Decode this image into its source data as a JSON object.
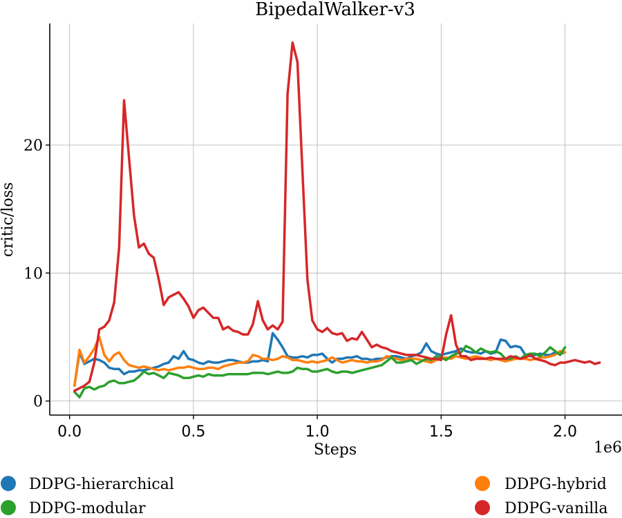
{
  "chart_data": {
    "type": "line",
    "title": "BipedalWalker-v3",
    "xlabel": "Steps",
    "ylabel": "critic/loss",
    "x_offset_label": "1e6",
    "xlim": [
      -0.08,
      2.23
    ],
    "ylim": [
      -1.1,
      29.5
    ],
    "xticks": [
      0.0,
      0.5,
      1.0,
      1.5,
      2.0
    ],
    "xtick_labels": [
      "0.0",
      "0.5",
      "1.0",
      "1.5",
      "2.0"
    ],
    "yticks": [
      0,
      10,
      20
    ],
    "ytick_labels": [
      "0",
      "10",
      "20"
    ],
    "grid": true,
    "legend_position": "bottom",
    "series": [
      {
        "name": "DDPG-hierarchical",
        "color": "#1f77b4",
        "x": [
          0.02,
          0.04,
          0.06,
          0.08,
          0.1,
          0.12,
          0.14,
          0.16,
          0.18,
          0.2,
          0.22,
          0.24,
          0.26,
          0.28,
          0.3,
          0.32,
          0.34,
          0.36,
          0.38,
          0.4,
          0.42,
          0.44,
          0.46,
          0.48,
          0.5,
          0.52,
          0.54,
          0.56,
          0.58,
          0.6,
          0.62,
          0.64,
          0.66,
          0.68,
          0.7,
          0.72,
          0.74,
          0.76,
          0.78,
          0.8,
          0.82,
          0.84,
          0.86,
          0.88,
          0.9,
          0.92,
          0.94,
          0.96,
          0.98,
          1.0,
          1.02,
          1.04,
          1.06,
          1.08,
          1.1,
          1.12,
          1.14,
          1.16,
          1.18,
          1.2,
          1.22,
          1.24,
          1.26,
          1.28,
          1.3,
          1.32,
          1.34,
          1.36,
          1.38,
          1.4,
          1.42,
          1.44,
          1.46,
          1.48,
          1.5,
          1.52,
          1.54,
          1.56,
          1.58,
          1.6,
          1.62,
          1.64,
          1.66,
          1.68,
          1.7,
          1.72,
          1.74,
          1.76,
          1.78,
          1.8,
          1.82,
          1.84,
          1.86,
          1.88,
          1.9,
          1.92,
          1.94,
          1.96,
          1.98,
          2.0
        ],
        "y": [
          1.2,
          3.8,
          2.9,
          3.1,
          3.3,
          3.2,
          3.0,
          2.6,
          2.5,
          2.5,
          2.1,
          2.3,
          2.3,
          2.4,
          2.4,
          2.5,
          2.6,
          2.7,
          2.9,
          3.0,
          3.5,
          3.3,
          3.9,
          3.3,
          3.2,
          3.0,
          2.9,
          3.1,
          3.0,
          3.0,
          3.1,
          3.2,
          3.2,
          3.1,
          3.0,
          3.0,
          3.1,
          3.1,
          3.2,
          3.1,
          5.3,
          4.8,
          4.2,
          3.5,
          3.4,
          3.4,
          3.5,
          3.4,
          3.6,
          3.6,
          3.7,
          3.3,
          3.0,
          3.3,
          3.3,
          3.4,
          3.4,
          3.5,
          3.3,
          3.3,
          3.2,
          3.3,
          3.3,
          3.4,
          3.5,
          3.5,
          3.4,
          3.3,
          3.5,
          3.6,
          3.8,
          4.5,
          3.9,
          3.7,
          3.6,
          3.7,
          3.8,
          3.9,
          4.1,
          3.9,
          3.8,
          3.8,
          3.7,
          3.9,
          3.7,
          3.8,
          4.8,
          4.7,
          4.2,
          4.3,
          4.2,
          3.6,
          3.5,
          3.6,
          3.7,
          3.6,
          3.6,
          3.8,
          3.7,
          3.8
        ]
      },
      {
        "name": "DDPG-hybrid",
        "color": "#ff7f0e",
        "x": [
          0.02,
          0.04,
          0.06,
          0.08,
          0.1,
          0.12,
          0.14,
          0.16,
          0.18,
          0.2,
          0.22,
          0.24,
          0.26,
          0.28,
          0.3,
          0.32,
          0.34,
          0.36,
          0.38,
          0.4,
          0.42,
          0.44,
          0.46,
          0.48,
          0.5,
          0.52,
          0.54,
          0.56,
          0.58,
          0.6,
          0.62,
          0.64,
          0.66,
          0.68,
          0.7,
          0.72,
          0.74,
          0.76,
          0.78,
          0.8,
          0.82,
          0.84,
          0.86,
          0.88,
          0.9,
          0.92,
          0.94,
          0.96,
          0.98,
          1.0,
          1.02,
          1.04,
          1.06,
          1.08,
          1.1,
          1.12,
          1.14,
          1.16,
          1.18,
          1.2,
          1.22,
          1.24,
          1.26,
          1.28,
          1.3,
          1.32,
          1.34,
          1.36,
          1.38,
          1.4,
          1.42,
          1.44,
          1.46,
          1.48,
          1.5,
          1.52,
          1.54,
          1.56,
          1.58,
          1.6,
          1.62,
          1.64,
          1.66,
          1.68,
          1.7,
          1.72,
          1.74,
          1.76,
          1.78,
          1.8,
          1.82,
          1.84,
          1.86,
          1.88,
          1.9,
          1.92,
          1.94,
          1.96,
          1.98,
          2.0
        ],
        "y": [
          1.2,
          4.0,
          3.0,
          3.5,
          4.1,
          5.0,
          3.6,
          3.1,
          3.6,
          3.8,
          3.2,
          2.8,
          2.7,
          2.6,
          2.7,
          2.6,
          2.5,
          2.4,
          2.5,
          2.4,
          2.5,
          2.6,
          2.6,
          2.7,
          2.6,
          2.5,
          2.5,
          2.6,
          2.6,
          2.5,
          2.7,
          2.8,
          2.9,
          3.0,
          3.0,
          3.1,
          3.6,
          3.5,
          3.3,
          3.3,
          3.2,
          3.3,
          3.5,
          3.4,
          3.2,
          3.2,
          3.1,
          3.0,
          3.1,
          3.0,
          3.1,
          3.2,
          3.4,
          3.2,
          3.0,
          3.1,
          3.2,
          3.1,
          3.1,
          3.0,
          3.1,
          3.1,
          3.2,
          3.5,
          3.4,
          3.3,
          3.2,
          3.3,
          3.3,
          3.3,
          3.2,
          3.1,
          3.0,
          3.2,
          3.3,
          3.4,
          3.3,
          3.5,
          3.4,
          3.3,
          3.4,
          3.5,
          3.4,
          3.3,
          3.2,
          3.3,
          3.2,
          3.1,
          3.2,
          3.3,
          3.3,
          3.3,
          3.2,
          3.3,
          3.4,
          3.4,
          3.5,
          3.6,
          3.9,
          3.8
        ]
      },
      {
        "name": "DDPG-modular",
        "color": "#2ca02c",
        "x": [
          0.02,
          0.04,
          0.06,
          0.08,
          0.1,
          0.12,
          0.14,
          0.16,
          0.18,
          0.2,
          0.22,
          0.24,
          0.26,
          0.28,
          0.3,
          0.32,
          0.34,
          0.36,
          0.38,
          0.4,
          0.42,
          0.44,
          0.46,
          0.48,
          0.5,
          0.52,
          0.54,
          0.56,
          0.58,
          0.6,
          0.62,
          0.64,
          0.66,
          0.68,
          0.7,
          0.72,
          0.74,
          0.76,
          0.78,
          0.8,
          0.82,
          0.84,
          0.86,
          0.88,
          0.9,
          0.92,
          0.94,
          0.96,
          0.98,
          1.0,
          1.02,
          1.04,
          1.06,
          1.08,
          1.1,
          1.12,
          1.14,
          1.16,
          1.18,
          1.2,
          1.22,
          1.24,
          1.26,
          1.28,
          1.3,
          1.32,
          1.34,
          1.36,
          1.38,
          1.4,
          1.42,
          1.44,
          1.46,
          1.48,
          1.5,
          1.52,
          1.54,
          1.56,
          1.58,
          1.6,
          1.62,
          1.64,
          1.66,
          1.68,
          1.7,
          1.72,
          1.74,
          1.76,
          1.78,
          1.8,
          1.82,
          1.84,
          1.86,
          1.88,
          1.9,
          1.92,
          1.94,
          1.96,
          1.98,
          2.0
        ],
        "y": [
          0.7,
          0.3,
          1.0,
          1.1,
          0.9,
          1.1,
          1.2,
          1.5,
          1.6,
          1.4,
          1.4,
          1.5,
          1.6,
          1.9,
          2.3,
          2.1,
          2.2,
          2.0,
          1.8,
          2.2,
          2.1,
          2.0,
          1.8,
          1.8,
          1.9,
          2.0,
          1.9,
          2.1,
          2.0,
          2.0,
          2.0,
          2.1,
          2.1,
          2.1,
          2.1,
          2.1,
          2.2,
          2.2,
          2.2,
          2.1,
          2.2,
          2.3,
          2.2,
          2.2,
          2.3,
          2.6,
          2.5,
          2.5,
          2.3,
          2.3,
          2.4,
          2.5,
          2.3,
          2.2,
          2.3,
          2.3,
          2.2,
          2.3,
          2.4,
          2.5,
          2.6,
          2.7,
          2.8,
          3.1,
          3.4,
          3.0,
          3.0,
          3.1,
          3.2,
          2.9,
          3.1,
          3.3,
          3.2,
          3.5,
          3.4,
          3.2,
          3.5,
          3.7,
          3.8,
          4.3,
          4.1,
          3.8,
          4.1,
          3.9,
          3.8,
          3.9,
          3.7,
          3.3,
          3.3,
          3.5,
          3.3,
          3.6,
          3.7,
          3.7,
          3.5,
          3.8,
          4.2,
          3.9,
          3.6,
          4.2
        ]
      },
      {
        "name": "DDPG-vanilla",
        "color": "#d62728",
        "x": [
          0.02,
          0.04,
          0.06,
          0.08,
          0.1,
          0.12,
          0.14,
          0.16,
          0.18,
          0.2,
          0.22,
          0.24,
          0.26,
          0.28,
          0.3,
          0.32,
          0.34,
          0.36,
          0.38,
          0.4,
          0.42,
          0.44,
          0.46,
          0.48,
          0.5,
          0.52,
          0.54,
          0.56,
          0.58,
          0.6,
          0.62,
          0.64,
          0.66,
          0.68,
          0.7,
          0.72,
          0.74,
          0.76,
          0.78,
          0.8,
          0.82,
          0.84,
          0.86,
          0.88,
          0.9,
          0.92,
          0.94,
          0.96,
          0.98,
          1.0,
          1.02,
          1.04,
          1.06,
          1.08,
          1.1,
          1.12,
          1.14,
          1.16,
          1.18,
          1.2,
          1.22,
          1.24,
          1.26,
          1.28,
          1.3,
          1.32,
          1.34,
          1.36,
          1.38,
          1.4,
          1.42,
          1.44,
          1.46,
          1.48,
          1.5,
          1.52,
          1.54,
          1.56,
          1.58,
          1.6,
          1.62,
          1.64,
          1.66,
          1.68,
          1.7,
          1.72,
          1.74,
          1.76,
          1.78,
          1.8,
          1.82,
          1.84,
          1.86,
          1.88,
          1.9,
          1.92,
          1.94,
          1.96,
          1.98,
          2.0,
          2.02,
          2.04,
          2.06,
          2.08,
          2.1,
          2.12,
          2.14
        ],
        "y": [
          0.8,
          1.0,
          1.2,
          1.5,
          3.0,
          5.6,
          5.8,
          6.3,
          7.7,
          12.0,
          23.5,
          19.0,
          14.5,
          12.0,
          12.3,
          11.5,
          11.2,
          9.5,
          7.5,
          8.1,
          8.3,
          8.5,
          8.0,
          7.4,
          6.5,
          7.1,
          7.3,
          6.9,
          6.5,
          6.5,
          5.6,
          5.8,
          5.5,
          5.4,
          5.2,
          5.2,
          6.0,
          7.8,
          6.3,
          5.6,
          5.9,
          5.6,
          6.2,
          24.0,
          28.0,
          26.5,
          18.0,
          9.5,
          6.3,
          5.6,
          5.4,
          5.7,
          5.3,
          5.2,
          5.3,
          4.7,
          4.9,
          4.8,
          5.4,
          4.8,
          4.2,
          4.4,
          4.2,
          4.1,
          3.9,
          3.8,
          3.7,
          3.6,
          3.6,
          3.6,
          3.5,
          3.4,
          3.3,
          3.3,
          3.2,
          5.2,
          6.7,
          4.4,
          3.5,
          3.5,
          3.2,
          3.3,
          3.3,
          3.3,
          3.4,
          3.3,
          3.3,
          3.3,
          3.5,
          3.4,
          3.3,
          3.4,
          3.6,
          3.3,
          3.2,
          3.1,
          2.9,
          2.8,
          3.0,
          3.0,
          3.1,
          3.2,
          3.1,
          3.0,
          3.1,
          2.9,
          3.0
        ]
      }
    ]
  }
}
